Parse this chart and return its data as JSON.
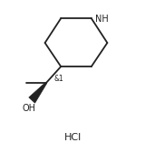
{
  "bg_color": "#ffffff",
  "line_color": "#222222",
  "line_width": 1.3,
  "font_size_label": 7.0,
  "font_size_hcl": 8.0,
  "font_size_stereo": 5.5,
  "figsize": [
    1.6,
    1.68
  ],
  "dpi": 100,
  "HCl_text": "HCl",
  "NH_text": "NH",
  "OH_text": "OH",
  "stereo_label": "&1"
}
